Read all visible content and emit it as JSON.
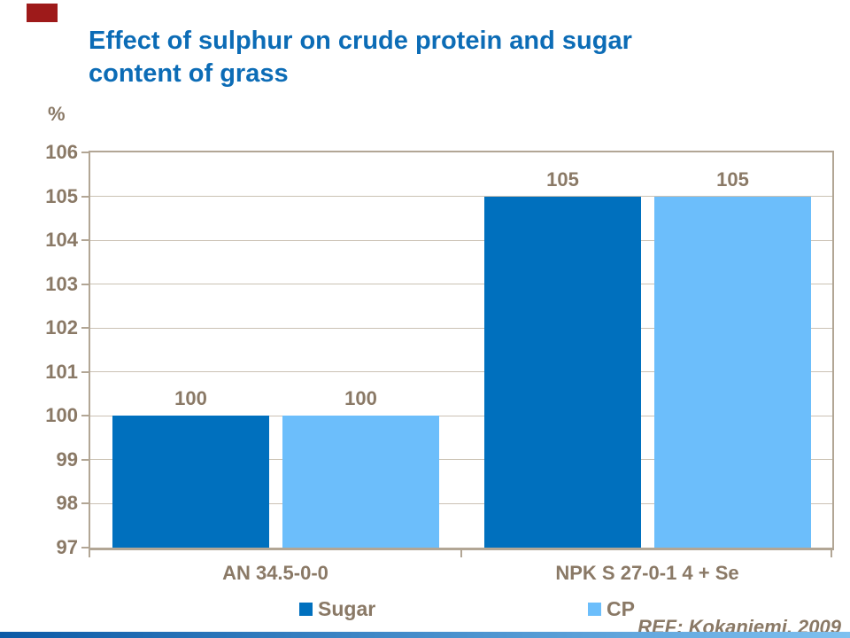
{
  "title_lines": [
    "Effect of sulphur on crude protein and sugar",
    "content of grass"
  ],
  "reference": "REF: Kokaniemi, 2009",
  "colors": {
    "title": "#0C6CB6",
    "text": "#8A7966",
    "grid": "#CBC2B4",
    "axis": "#B2A695",
    "accent_red": "#9E1A1A",
    "footer_bar_left": "#0C5AA6",
    "footer_bar_right": "#7FC1F0"
  },
  "chart_data": {
    "type": "bar",
    "title": "Effect of sulphur on crude protein and sugar content of grass",
    "categories": [
      "AN 34.5-0-0",
      "NPK S 27-0-1 4 + Se"
    ],
    "series": [
      {
        "name": "Sugar",
        "values": [
          100,
          105
        ],
        "color": "#0070BE"
      },
      {
        "name": "CP",
        "values": [
          100,
          105
        ],
        "color": "#6CBEFB"
      }
    ],
    "value_labels": [
      "100",
      "100",
      "105",
      "105"
    ],
    "xlabel": "",
    "ylabel": "%",
    "ylim": [
      97,
      106
    ],
    "ytick_step": 1,
    "grid": true,
    "legend_position": "bottom"
  }
}
